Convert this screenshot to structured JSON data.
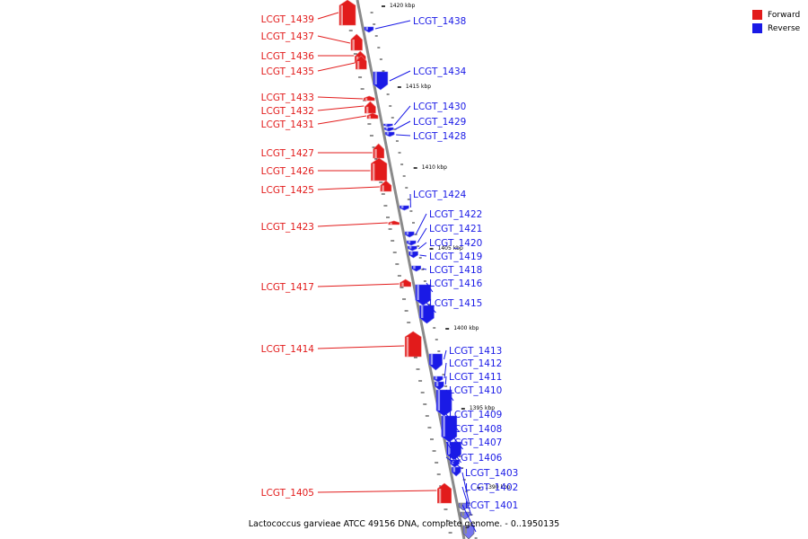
{
  "colors": {
    "forward": "#e21b1b",
    "reverse": "#1a1ae6",
    "axis": "#8a8a8a"
  },
  "legend": {
    "forward_label": "Forward",
    "reverse_label": "Reverse"
  },
  "caption": "Lactococcus garvieae ATCC 49156 DNA, complete genome. - 0..1950135",
  "scale_labels": [
    "1420 kbp",
    "1415 kbp",
    "1410 kbp",
    "1405 kbp",
    "1400 kbp",
    "1395 kbp",
    "1390 kbp"
  ],
  "forward_genes": [
    "LCGT_1439",
    "LCGT_1437",
    "LCGT_1436",
    "LCGT_1435",
    "LCGT_1433",
    "LCGT_1432",
    "LCGT_1431",
    "LCGT_1427",
    "LCGT_1426",
    "LCGT_1425",
    "LCGT_1423",
    "LCGT_1417",
    "LCGT_1414",
    "LCGT_1405"
  ],
  "reverse_genes": [
    "LCGT_1438",
    "LCGT_1434",
    "LCGT_1430",
    "LCGT_1429",
    "LCGT_1428",
    "LCGT_1424",
    "LCGT_1422",
    "LCGT_1421",
    "LCGT_1420",
    "LCGT_1419",
    "LCGT_1418",
    "LCGT_1416",
    "LCGT_1415",
    "LCGT_1413",
    "LCGT_1412",
    "LCGT_1411",
    "LCGT_1410",
    "LCGT_1409",
    "LCGT_1408",
    "LCGT_1407",
    "LCGT_1406",
    "LCGT_1403",
    "LCGT_1402",
    "LCGT_1401"
  ]
}
